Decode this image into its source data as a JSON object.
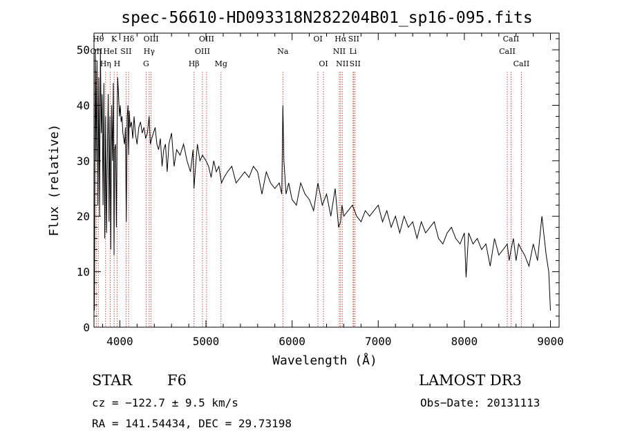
{
  "chart_data": {
    "type": "line",
    "title": "spec-56610-HD093318N282204B01_sp16-095.fits",
    "xlabel": "Wavelength (Å)",
    "ylabel": "Flux (relative)",
    "xlim": [
      3700,
      9100
    ],
    "ylim": [
      0,
      53
    ],
    "xticks": [
      4000,
      5000,
      6000,
      7000,
      8000,
      9000
    ],
    "yticks": [
      0,
      10,
      20,
      30,
      40,
      50
    ],
    "series": [
      {
        "name": "flux",
        "x": [
          3700,
          3705,
          3715,
          3725,
          3735,
          3745,
          3755,
          3765,
          3775,
          3785,
          3795,
          3805,
          3815,
          3825,
          3835,
          3845,
          3855,
          3865,
          3875,
          3885,
          3895,
          3905,
          3915,
          3925,
          3933,
          3940,
          3950,
          3960,
          3968,
          3975,
          3985,
          3995,
          4005,
          4015,
          4025,
          4035,
          4045,
          4055,
          4065,
          4075,
          4085,
          4095,
          4102,
          4110,
          4120,
          4135,
          4150,
          4165,
          4180,
          4200,
          4220,
          4240,
          4260,
          4280,
          4300,
          4320,
          4340,
          4355,
          4370,
          4390,
          4410,
          4430,
          4450,
          4470,
          4490,
          4510,
          4530,
          4550,
          4570,
          4600,
          4630,
          4660,
          4700,
          4740,
          4780,
          4820,
          4850,
          4861,
          4875,
          4900,
          4930,
          4960,
          5000,
          5030,
          5060,
          5090,
          5120,
          5150,
          5180,
          5210,
          5250,
          5300,
          5350,
          5400,
          5450,
          5500,
          5550,
          5600,
          5650,
          5700,
          5750,
          5800,
          5850,
          5880,
          5893,
          5905,
          5930,
          5960,
          6000,
          6050,
          6100,
          6150,
          6200,
          6250,
          6300,
          6350,
          6400,
          6450,
          6500,
          6540,
          6563,
          6580,
          6600,
          6650,
          6700,
          6750,
          6800,
          6850,
          6900,
          6950,
          7000,
          7050,
          7100,
          7150,
          7200,
          7250,
          7300,
          7350,
          7400,
          7450,
          7500,
          7550,
          7600,
          7650,
          7700,
          7750,
          7800,
          7850,
          7900,
          7950,
          8000,
          8020,
          8050,
          8100,
          8150,
          8200,
          8250,
          8300,
          8350,
          8400,
          8450,
          8498,
          8520,
          8542,
          8570,
          8600,
          8630,
          8662,
          8700,
          8750,
          8800,
          8850,
          8900,
          8950,
          8980,
          9000
        ],
        "values": [
          13,
          3,
          50,
          30,
          48,
          22,
          45,
          20,
          50,
          35,
          42,
          22,
          44,
          16,
          38,
          17,
          30,
          42,
          19,
          38,
          14,
          40,
          30,
          44,
          13,
          32,
          33,
          18,
          34,
          45,
          42,
          38,
          40,
          37,
          38,
          35,
          34,
          33,
          36,
          19,
          38,
          40,
          31,
          39,
          36,
          37,
          34,
          38,
          35,
          33,
          36,
          37,
          35,
          36,
          34,
          35,
          38,
          33,
          34,
          35,
          36,
          33,
          32,
          34,
          29,
          32,
          33,
          28,
          33,
          35,
          29,
          32,
          31,
          33,
          30,
          28,
          32,
          25,
          28,
          33,
          30,
          31,
          30,
          29,
          27,
          30,
          28,
          29,
          26,
          27,
          28,
          29,
          26,
          27,
          28,
          27,
          29,
          28,
          24,
          28,
          26,
          25,
          26,
          24,
          40,
          30,
          24,
          26,
          23,
          22,
          26,
          24,
          23,
          21,
          26,
          22,
          24,
          20,
          25,
          18,
          19,
          22,
          20,
          21,
          22,
          20,
          19,
          21,
          20,
          21,
          22,
          19,
          21,
          18,
          20,
          17,
          20,
          18,
          19,
          16,
          19,
          17,
          18,
          19,
          16,
          15,
          17,
          18,
          16,
          15,
          17,
          9,
          17,
          15,
          16,
          14,
          15,
          11,
          16,
          13,
          14,
          15,
          12,
          14,
          16,
          12,
          15,
          14,
          13,
          11,
          15,
          12,
          20,
          13,
          10,
          3
        ]
      }
    ],
    "lines": [
      {
        "label": "Hθ",
        "x": 3750,
        "row": 1
      },
      {
        "label": "OII",
        "x": 3727,
        "row": 2
      },
      {
        "label": "Hη",
        "x": 3835,
        "row": 3
      },
      {
        "label": "K",
        "x": 3934,
        "row": 1
      },
      {
        "label": "HeI",
        "x": 3889,
        "row": 2
      },
      {
        "label": "H",
        "x": 3968,
        "row": 3
      },
      {
        "label": "Hδ",
        "x": 4102,
        "row": 1
      },
      {
        "label": "SII",
        "x": 4072,
        "row": 2
      },
      {
        "label": "OIII",
        "x": 4363,
        "row": 1
      },
      {
        "label": "Hγ",
        "x": 4341,
        "row": 2
      },
      {
        "label": "G",
        "x": 4305,
        "row": 3
      },
      {
        "label": "Hβ",
        "x": 4861,
        "row": 3
      },
      {
        "label": "OIII",
        "x": 5007,
        "row": 1
      },
      {
        "label": "OIII",
        "x": 4959,
        "row": 2
      },
      {
        "label": "Mg",
        "x": 5175,
        "row": 3
      },
      {
        "label": "Na",
        "x": 5893,
        "row": 2
      },
      {
        "label": "OI",
        "x": 6300,
        "row": 1
      },
      {
        "label": "OI",
        "x": 6364,
        "row": 3
      },
      {
        "label": "Hα",
        "x": 6563,
        "row": 1
      },
      {
        "label": "NII",
        "x": 6548,
        "row": 2
      },
      {
        "label": "NII",
        "x": 6583,
        "row": 3
      },
      {
        "label": "SII",
        "x": 6716,
        "row": 1
      },
      {
        "label": "Li",
        "x": 6708,
        "row": 2
      },
      {
        "label": "SII",
        "x": 6731,
        "row": 3
      },
      {
        "label": "CaII",
        "x": 8542,
        "row": 1
      },
      {
        "label": "CaII",
        "x": 8498,
        "row": 2
      },
      {
        "label": "CaII",
        "x": 8662,
        "row": 3
      }
    ]
  },
  "info": {
    "class": "STAR",
    "subclass": "F6",
    "survey": "LAMOST DR3",
    "cz": "cz = −122.7 ± 9.5 km/s",
    "obs_date": "Obs−Date: 20131113",
    "coords": "RA = 141.54434, DEC =  29.73198"
  }
}
